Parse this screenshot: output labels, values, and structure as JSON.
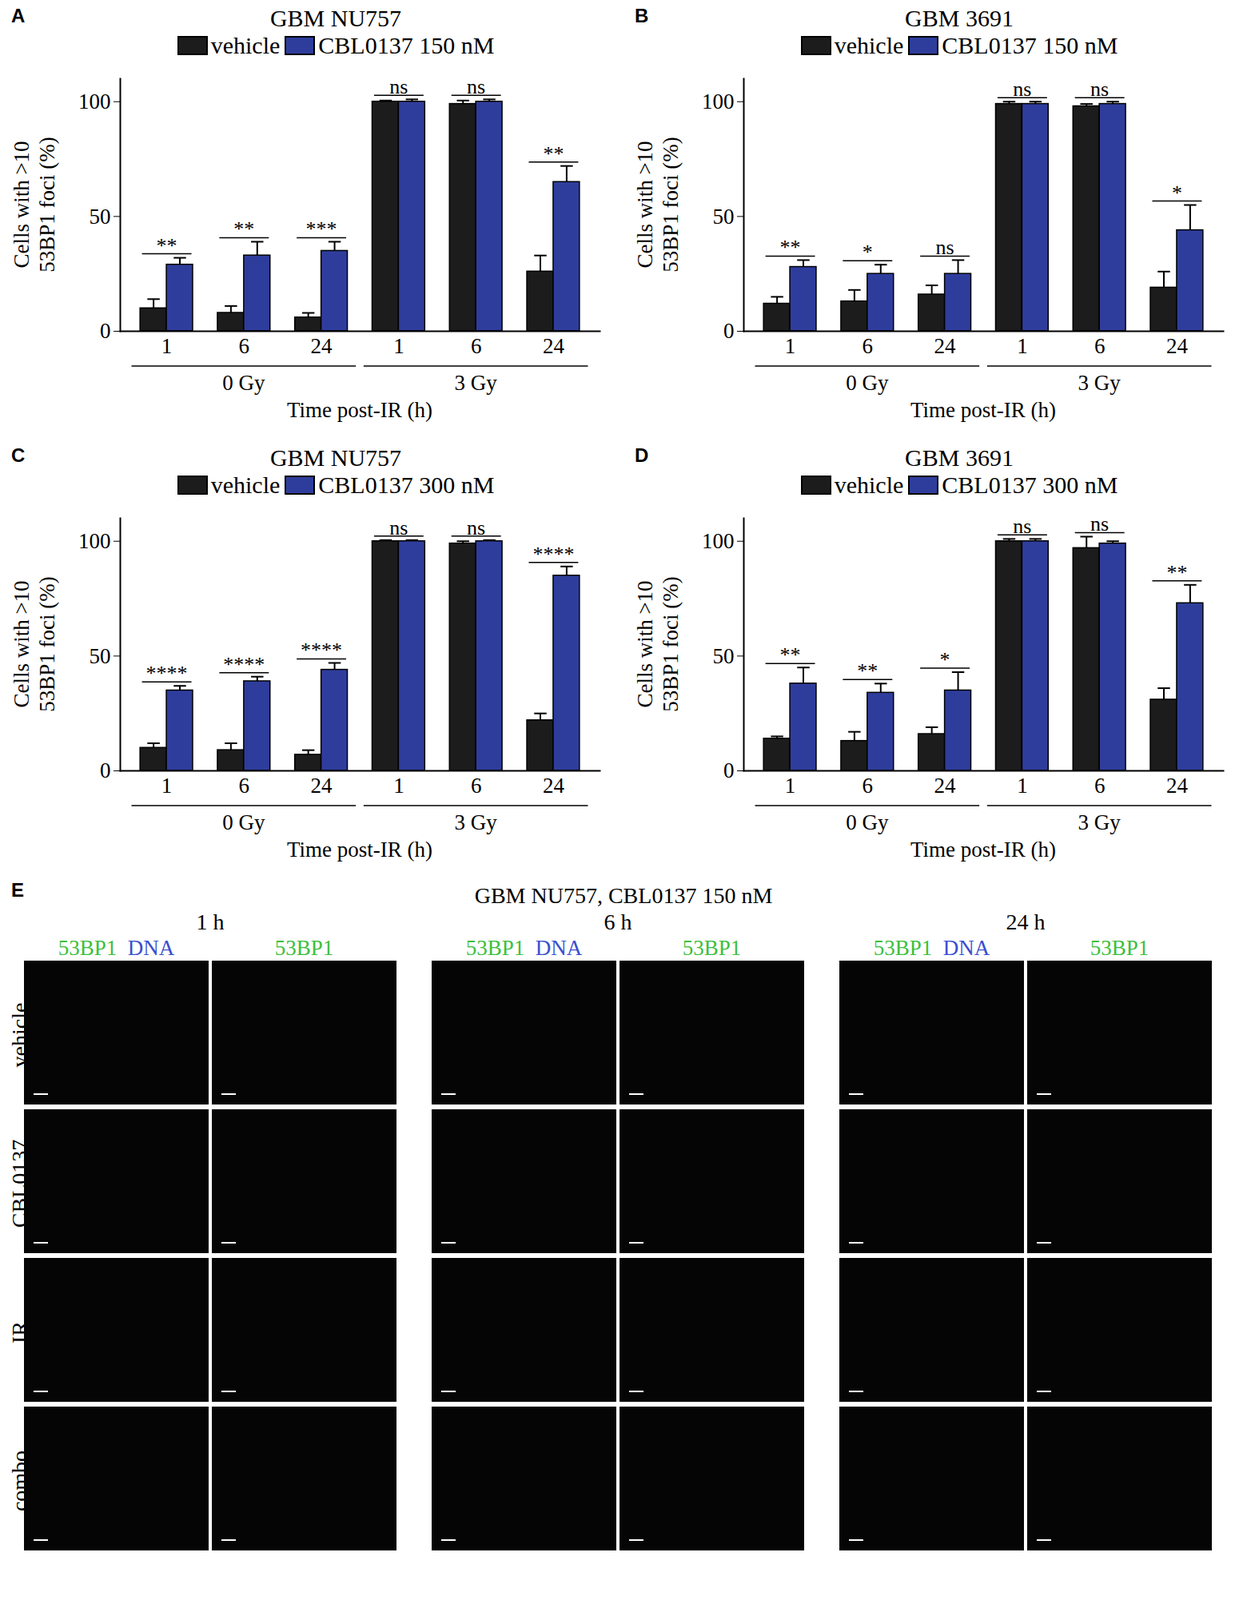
{
  "chart_data": [
    {
      "type": "bar",
      "panel": "A",
      "title": "GBM NU757",
      "categories": [
        "1",
        "6",
        "24",
        "1",
        "6",
        "24"
      ],
      "group_labels": [
        "0 Gy",
        "0 Gy",
        "0 Gy",
        "3 Gy",
        "3 Gy",
        "3 Gy"
      ],
      "x_label": "Time post-IR (h)",
      "y_label": "Cells with >10\n53BP1 foci (%)",
      "ylim": [
        0,
        110
      ],
      "yticks": [
        0,
        50,
        100
      ],
      "legend": "top",
      "series": [
        {
          "name": "vehicle",
          "color": "#1c1c1c",
          "values": [
            10,
            8,
            6,
            100,
            99,
            26
          ],
          "errors": [
            4,
            3,
            2,
            0.5,
            1.5,
            7
          ]
        },
        {
          "name": "CBL0137 150 nM",
          "color": "#2e3d9c",
          "values": [
            29,
            33,
            35,
            100,
            100,
            65
          ],
          "errors": [
            3,
            6,
            4,
            1,
            1,
            7
          ]
        }
      ],
      "significance": [
        "**",
        "**",
        "***",
        "ns",
        "ns",
        "**"
      ]
    },
    {
      "type": "bar",
      "panel": "B",
      "title": "GBM 3691",
      "categories": [
        "1",
        "6",
        "24",
        "1",
        "6",
        "24"
      ],
      "group_labels": [
        "0 Gy",
        "0 Gy",
        "0 Gy",
        "3 Gy",
        "3 Gy",
        "3 Gy"
      ],
      "x_label": "Time post-IR (h)",
      "y_label": "Cells with >10\n53BP1 foci (%)",
      "ylim": [
        0,
        110
      ],
      "yticks": [
        0,
        50,
        100
      ],
      "legend": "top",
      "series": [
        {
          "name": "vehicle",
          "color": "#1c1c1c",
          "values": [
            12,
            13,
            16,
            99,
            98,
            19
          ],
          "errors": [
            3,
            5,
            4,
            1,
            1,
            7
          ]
        },
        {
          "name": "CBL0137 150 nM",
          "color": "#2e3d9c",
          "values": [
            28,
            25,
            25,
            99,
            99,
            44
          ],
          "errors": [
            3,
            4,
            6,
            1,
            1,
            11
          ]
        }
      ],
      "significance": [
        "**",
        "*",
        "ns",
        "ns",
        "ns",
        "*"
      ]
    },
    {
      "type": "bar",
      "panel": "C",
      "title": "GBM NU757",
      "categories": [
        "1",
        "6",
        "24",
        "1",
        "6",
        "24"
      ],
      "group_labels": [
        "0 Gy",
        "0 Gy",
        "0 Gy",
        "3 Gy",
        "3 Gy",
        "3 Gy"
      ],
      "x_label": "Time post-IR (h)",
      "y_label": "Cells with >10\n53BP1 foci (%)",
      "ylim": [
        0,
        110
      ],
      "yticks": [
        0,
        50,
        100
      ],
      "legend": "top",
      "series": [
        {
          "name": "vehicle",
          "color": "#1c1c1c",
          "values": [
            10,
            9,
            7,
            100,
            99,
            22
          ],
          "errors": [
            2,
            3,
            2,
            0.5,
            1,
            3
          ]
        },
        {
          "name": "CBL0137 300 nM",
          "color": "#2e3d9c",
          "values": [
            35,
            39,
            44,
            100,
            100,
            85
          ],
          "errors": [
            2,
            2,
            3,
            0.5,
            0.5,
            4
          ]
        }
      ],
      "significance": [
        "****",
        "****",
        "****",
        "ns",
        "ns",
        "****"
      ]
    },
    {
      "type": "bar",
      "panel": "D",
      "title": "GBM 3691",
      "categories": [
        "1",
        "6",
        "24",
        "1",
        "6",
        "24"
      ],
      "group_labels": [
        "0 Gy",
        "0 Gy",
        "0 Gy",
        "3 Gy",
        "3 Gy",
        "3 Gy"
      ],
      "x_label": "Time post-IR (h)",
      "y_label": "Cells with >10\n53BP1 foci (%)",
      "ylim": [
        0,
        110
      ],
      "yticks": [
        0,
        50,
        100
      ],
      "legend": "top",
      "series": [
        {
          "name": "vehicle",
          "color": "#1c1c1c",
          "values": [
            14,
            13,
            16,
            100,
            97,
            31
          ],
          "errors": [
            1,
            4,
            3,
            1,
            5,
            5
          ]
        },
        {
          "name": "CBL0137 300 nM",
          "color": "#2e3d9c",
          "values": [
            38,
            34,
            35,
            100,
            99,
            73
          ],
          "errors": [
            7,
            4,
            8,
            1,
            1,
            8
          ]
        }
      ],
      "significance": [
        "**",
        "**",
        "*",
        "ns",
        "ns",
        "**"
      ]
    }
  ],
  "image_panel": {
    "panel": "E",
    "title": "GBM NU757, CBL0137 150 nM",
    "times": [
      "1 h",
      "6 h",
      "24 h"
    ],
    "columns": [
      [
        "53BP1",
        "DNA"
      ],
      [
        "53BP1"
      ]
    ],
    "channel_colors": {
      "53BP1": "#3cbf3c",
      "DNA": "#3a4fcf"
    },
    "rows": [
      "vehicle",
      "CBL0137",
      "IR",
      "combo"
    ]
  }
}
